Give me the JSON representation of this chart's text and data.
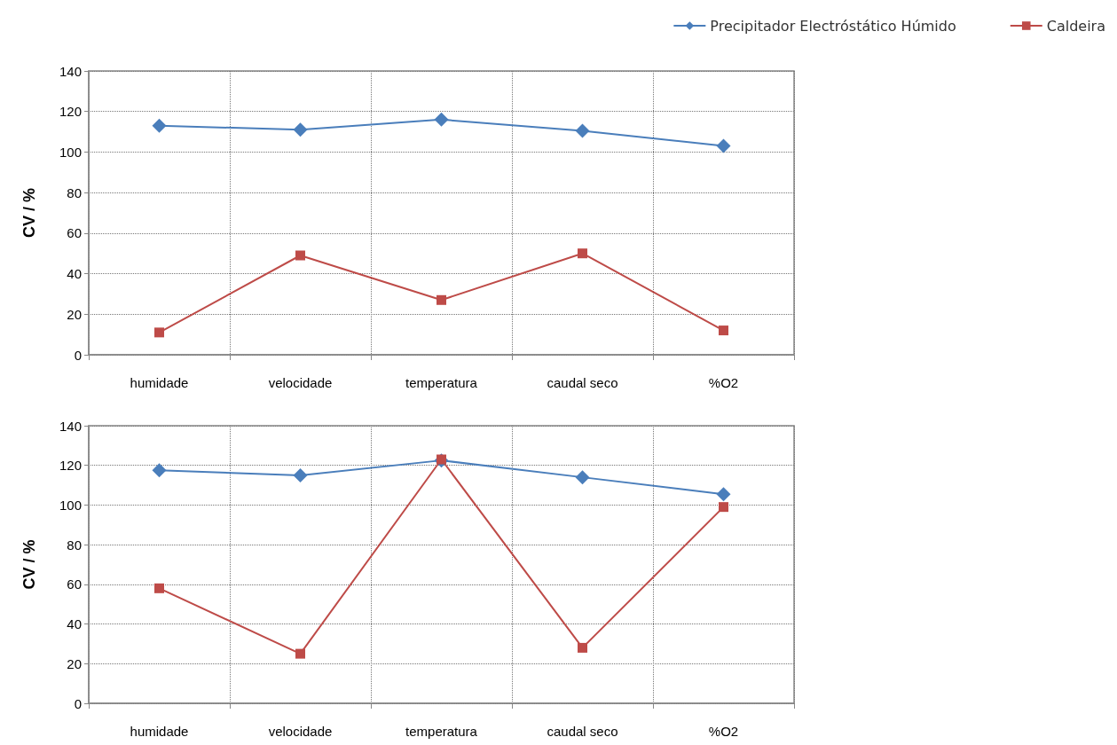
{
  "chart_data": [
    {
      "type": "line",
      "ylabel": "CV / %",
      "categories": [
        "humidade",
        "velocidade",
        "temperatura",
        "caudal seco",
        "%O2"
      ],
      "ylim": [
        0,
        140
      ],
      "yticks": [
        0,
        20,
        40,
        60,
        80,
        100,
        120,
        140
      ],
      "grid": true,
      "legend": "top right",
      "series": [
        {
          "name": "Precipitador Electróstático Húmido",
          "color": "#4a7ebb",
          "marker": "diamond",
          "values": [
            113,
            111,
            116,
            110.5,
            103
          ]
        },
        {
          "name": "Caldeira",
          "color": "#be4b48",
          "marker": "square",
          "values": [
            11,
            49,
            27,
            50,
            12
          ]
        }
      ]
    },
    {
      "type": "line",
      "ylabel": "CV / %",
      "categories": [
        "humidade",
        "velocidade",
        "temperatura",
        "caudal seco",
        "%O2"
      ],
      "ylim": [
        0,
        140
      ],
      "yticks": [
        0,
        20,
        40,
        60,
        80,
        100,
        120,
        140
      ],
      "grid": true,
      "legend": false,
      "series": [
        {
          "color": "#4a7ebb",
          "marker": "diamond",
          "values": [
            117.5,
            115,
            122.5,
            114,
            105.5
          ]
        },
        {
          "color": "#be4b48",
          "marker": "square",
          "values": [
            58,
            25,
            123,
            28,
            99
          ]
        }
      ]
    }
  ]
}
